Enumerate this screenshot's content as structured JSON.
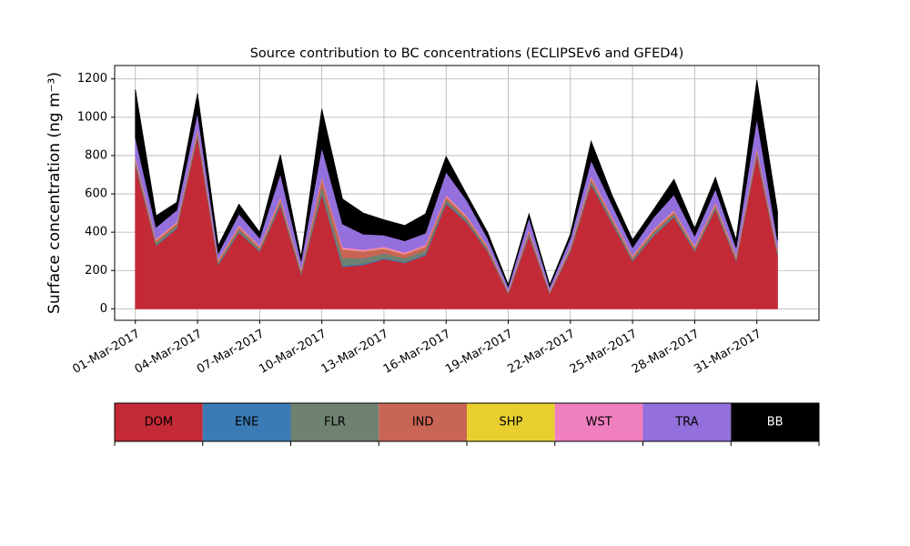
{
  "chart_data": {
    "type": "stacked_area",
    "title": "Source contribution to BC concentrations (ECLIPSEv6 and GFED4)",
    "y_label": "Surface concentration (ng m⁻³)",
    "x": [
      "2017-03-01",
      "2017-03-02",
      "2017-03-03",
      "2017-03-04",
      "2017-03-05",
      "2017-03-06",
      "2017-03-07",
      "2017-03-08",
      "2017-03-09",
      "2017-03-10",
      "2017-03-11",
      "2017-03-12",
      "2017-03-13",
      "2017-03-14",
      "2017-03-15",
      "2017-03-16",
      "2017-03-17",
      "2017-03-18",
      "2017-03-19",
      "2017-03-20",
      "2017-03-21",
      "2017-03-22",
      "2017-03-23",
      "2017-03-24",
      "2017-03-25",
      "2017-03-26",
      "2017-03-27",
      "2017-03-28",
      "2017-03-29",
      "2017-03-30",
      "2017-03-31",
      "2017-04-01"
    ],
    "xlim": [
      "2017-02-28",
      "2017-04-03"
    ],
    "xticks": [
      {
        "value": "2017-03-01",
        "label": "01-Mar-2017"
      },
      {
        "value": "2017-03-04",
        "label": "04-Mar-2017"
      },
      {
        "value": "2017-03-07",
        "label": "07-Mar-2017"
      },
      {
        "value": "2017-03-10",
        "label": "10-Mar-2017"
      },
      {
        "value": "2017-03-13",
        "label": "13-Mar-2017"
      },
      {
        "value": "2017-03-16",
        "label": "16-Mar-2017"
      },
      {
        "value": "2017-03-19",
        "label": "19-Mar-2017"
      },
      {
        "value": "2017-03-22",
        "label": "22-Mar-2017"
      },
      {
        "value": "2017-03-25",
        "label": "25-Mar-2017"
      },
      {
        "value": "2017-03-28",
        "label": "28-Mar-2017"
      },
      {
        "value": "2017-03-31",
        "label": "31-Mar-2017"
      }
    ],
    "ylim": [
      -60,
      1270
    ],
    "yticks": [
      0,
      200,
      400,
      600,
      800,
      1000,
      1200
    ],
    "grid": true,
    "series": [
      {
        "name": "DOM",
        "color": "#c42a36",
        "values": [
          750,
          330,
          420,
          900,
          230,
          400,
          300,
          540,
          180,
          600,
          220,
          230,
          260,
          240,
          280,
          550,
          450,
          300,
          80,
          380,
          80,
          300,
          650,
          450,
          250,
          380,
          480,
          300,
          520,
          250,
          800,
          280
        ]
      },
      {
        "name": "ENE",
        "color": "#3a7bb5",
        "values": [
          5,
          4,
          4,
          5,
          3,
          4,
          3,
          5,
          3,
          6,
          6,
          5,
          5,
          5,
          5,
          5,
          4,
          3,
          2,
          4,
          2,
          3,
          5,
          4,
          3,
          4,
          4,
          3,
          4,
          3,
          5,
          4
        ]
      },
      {
        "name": "FLR",
        "color": "#6f8272",
        "values": [
          15,
          12,
          12,
          15,
          10,
          12,
          10,
          15,
          10,
          35,
          40,
          30,
          25,
          20,
          20,
          15,
          12,
          10,
          5,
          12,
          5,
          10,
          15,
          12,
          10,
          12,
          12,
          10,
          12,
          10,
          15,
          12
        ]
      },
      {
        "name": "IND",
        "color": "#c86555",
        "values": [
          15,
          12,
          12,
          15,
          10,
          12,
          10,
          15,
          10,
          40,
          45,
          35,
          25,
          20,
          20,
          15,
          12,
          10,
          5,
          12,
          5,
          10,
          15,
          12,
          10,
          12,
          12,
          10,
          12,
          10,
          15,
          12
        ]
      },
      {
        "name": "SHP",
        "color": "#e8cf2f",
        "values": [
          2,
          2,
          2,
          2,
          2,
          2,
          2,
          2,
          2,
          2,
          2,
          2,
          2,
          2,
          2,
          2,
          2,
          2,
          1,
          2,
          1,
          2,
          2,
          2,
          2,
          2,
          2,
          2,
          2,
          2,
          2,
          2
        ]
      },
      {
        "name": "WST",
        "color": "#f07fbe",
        "values": [
          8,
          6,
          6,
          8,
          5,
          6,
          5,
          8,
          5,
          10,
          10,
          8,
          8,
          8,
          8,
          8,
          6,
          5,
          3,
          6,
          3,
          5,
          8,
          6,
          5,
          6,
          6,
          5,
          6,
          5,
          8,
          6
        ]
      },
      {
        "name": "TRA",
        "color": "#9370db",
        "values": [
          100,
          60,
          60,
          80,
          30,
          60,
          40,
          120,
          40,
          150,
          120,
          80,
          60,
          60,
          60,
          120,
          80,
          40,
          20,
          60,
          20,
          40,
          80,
          60,
          40,
          60,
          80,
          50,
          70,
          40,
          150,
          40
        ]
      },
      {
        "name": "BB",
        "color": "#000000",
        "values": [
          250,
          60,
          40,
          100,
          40,
          50,
          30,
          100,
          20,
          200,
          130,
          110,
          80,
          80,
          100,
          80,
          30,
          30,
          10,
          20,
          10,
          20,
          100,
          50,
          40,
          40,
          80,
          40,
          60,
          40,
          200,
          150
        ]
      }
    ]
  }
}
